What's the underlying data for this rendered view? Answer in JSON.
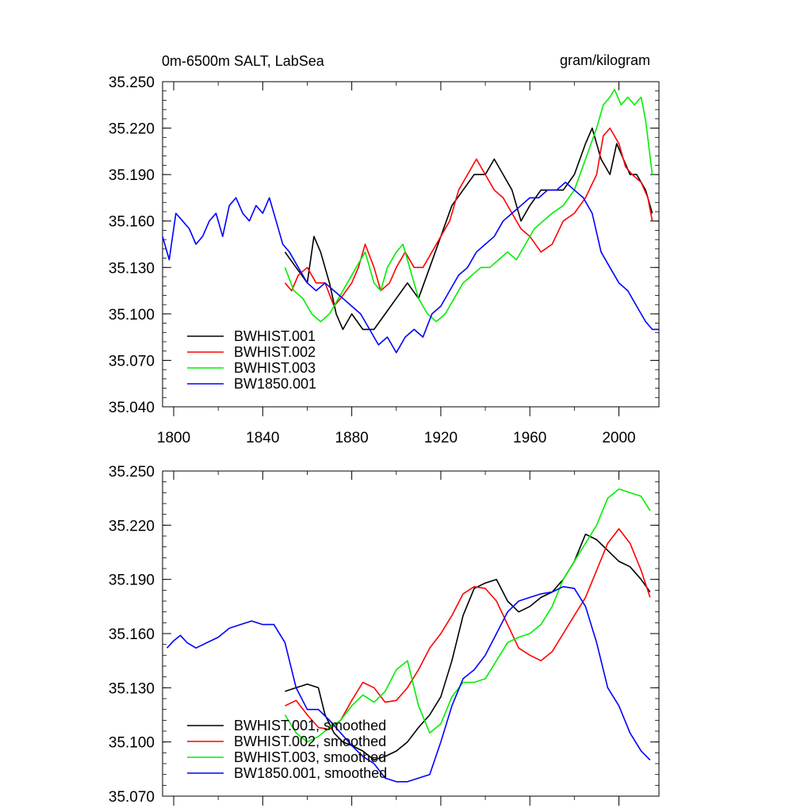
{
  "chart_data": [
    {
      "type": "line",
      "title": "0m-6500m SALT, LabSea",
      "units": "gram/kilogram",
      "xlim": [
        1795,
        2018
      ],
      "ylim": [
        35.04,
        35.25
      ],
      "xticks": [
        1800,
        1840,
        1880,
        1920,
        1960,
        2000
      ],
      "xtick_labels": [
        "1800",
        "1840",
        "1880",
        "1920",
        "1960",
        "2000"
      ],
      "yticks": [
        35.04,
        35.07,
        35.1,
        35.13,
        35.16,
        35.19,
        35.22,
        35.25
      ],
      "ytick_labels": [
        "35.040",
        "35.070",
        "35.100",
        "35.130",
        "35.160",
        "35.190",
        "35.220",
        "35.250"
      ],
      "legend": "bottom-left",
      "series": [
        {
          "name": "BWHIST.001",
          "color": "#000000",
          "x": [
            1850,
            1855,
            1860,
            1863,
            1866,
            1870,
            1873,
            1876,
            1880,
            1885,
            1890,
            1895,
            1900,
            1905,
            1910,
            1915,
            1920,
            1925,
            1930,
            1935,
            1940,
            1944,
            1948,
            1952,
            1956,
            1960,
            1965,
            1970,
            1975,
            1980,
            1985,
            1988,
            1992,
            1996,
            1999,
            2002,
            2005,
            2008,
            2012,
            2015
          ],
          "y": [
            35.14,
            35.13,
            35.12,
            35.15,
            35.14,
            35.12,
            35.1,
            35.09,
            35.1,
            35.09,
            35.09,
            35.1,
            35.11,
            35.12,
            35.11,
            35.13,
            35.15,
            35.17,
            35.18,
            35.19,
            35.19,
            35.2,
            35.19,
            35.18,
            35.16,
            35.17,
            35.18,
            35.18,
            35.18,
            35.19,
            35.21,
            35.22,
            35.2,
            35.19,
            35.21,
            35.2,
            35.19,
            35.19,
            35.18,
            35.165
          ]
        },
        {
          "name": "BWHIST.002",
          "color": "#ff0000",
          "x": [
            1850,
            1853,
            1856,
            1860,
            1864,
            1868,
            1872,
            1875,
            1880,
            1883,
            1886,
            1890,
            1893,
            1897,
            1900,
            1904,
            1908,
            1912,
            1916,
            1920,
            1924,
            1928,
            1932,
            1936,
            1940,
            1944,
            1948,
            1952,
            1956,
            1960,
            1965,
            1970,
            1975,
            1980,
            1985,
            1990,
            1993,
            1996,
            2000,
            2003,
            2006,
            2010,
            2013,
            2015
          ],
          "y": [
            35.12,
            35.115,
            35.125,
            35.13,
            35.12,
            35.12,
            35.105,
            35.11,
            35.12,
            35.13,
            35.145,
            35.13,
            35.115,
            35.12,
            35.13,
            35.14,
            35.13,
            35.13,
            35.14,
            35.15,
            35.16,
            35.18,
            35.19,
            35.2,
            35.19,
            35.18,
            35.175,
            35.165,
            35.155,
            35.15,
            35.14,
            35.145,
            35.16,
            35.165,
            35.175,
            35.19,
            35.215,
            35.22,
            35.21,
            35.195,
            35.19,
            35.185,
            35.175,
            35.16
          ]
        },
        {
          "name": "BWHIST.003",
          "color": "#00ee00",
          "x": [
            1850,
            1854,
            1858,
            1862,
            1866,
            1870,
            1874,
            1878,
            1882,
            1886,
            1890,
            1893,
            1896,
            1900,
            1903,
            1906,
            1910,
            1914,
            1918,
            1922,
            1926,
            1930,
            1934,
            1938,
            1942,
            1946,
            1950,
            1954,
            1958,
            1962,
            1966,
            1970,
            1975,
            1980,
            1985,
            1990,
            1993,
            1996,
            1998,
            2001,
            2004,
            2007,
            2010,
            2012,
            2015
          ],
          "y": [
            35.13,
            35.115,
            35.11,
            35.1,
            35.095,
            35.1,
            35.11,
            35.12,
            35.13,
            35.14,
            35.12,
            35.115,
            35.13,
            35.14,
            35.145,
            35.13,
            35.11,
            35.1,
            35.095,
            35.1,
            35.11,
            35.12,
            35.125,
            35.13,
            35.13,
            35.135,
            35.14,
            35.135,
            35.145,
            35.155,
            35.16,
            35.165,
            35.17,
            35.18,
            35.2,
            35.22,
            35.235,
            35.24,
            35.245,
            35.235,
            35.24,
            35.235,
            35.24,
            35.225,
            35.19
          ]
        },
        {
          "name": "BW1850.001",
          "color": "#0000ff",
          "x": [
            1795,
            1798,
            1801,
            1804,
            1807,
            1810,
            1813,
            1816,
            1819,
            1822,
            1825,
            1828,
            1831,
            1834,
            1837,
            1840,
            1843,
            1846,
            1849,
            1852,
            1856,
            1860,
            1864,
            1868,
            1872,
            1876,
            1880,
            1884,
            1888,
            1892,
            1896,
            1900,
            1904,
            1908,
            1912,
            1916,
            1920,
            1924,
            1928,
            1932,
            1936,
            1940,
            1944,
            1948,
            1952,
            1956,
            1960,
            1964,
            1968,
            1972,
            1976,
            1980,
            1984,
            1988,
            1992,
            1996,
            2000,
            2004,
            2008,
            2012,
            2015,
            2018
          ],
          "y": [
            35.15,
            35.135,
            35.165,
            35.16,
            35.155,
            35.145,
            35.15,
            35.16,
            35.165,
            35.15,
            35.17,
            35.175,
            35.165,
            35.16,
            35.17,
            35.165,
            35.175,
            35.16,
            35.145,
            35.14,
            35.13,
            35.12,
            35.115,
            35.12,
            35.115,
            35.11,
            35.105,
            35.1,
            35.09,
            35.08,
            35.085,
            35.075,
            35.085,
            35.09,
            35.085,
            35.1,
            35.105,
            35.115,
            35.125,
            35.13,
            35.14,
            35.145,
            35.15,
            35.16,
            35.165,
            35.17,
            35.175,
            35.175,
            35.18,
            35.18,
            35.185,
            35.18,
            35.175,
            35.165,
            35.14,
            35.13,
            35.12,
            35.115,
            35.105,
            35.095,
            35.09,
            35.09
          ]
        }
      ]
    },
    {
      "type": "line",
      "xlim": [
        1795,
        2018
      ],
      "ylim": [
        35.07,
        35.25
      ],
      "xticks": [
        1800,
        1840,
        1880,
        1920,
        1960,
        2000
      ],
      "yticks": [
        35.07,
        35.1,
        35.13,
        35.16,
        35.19,
        35.22,
        35.25
      ],
      "ytick_labels": [
        "35.070",
        "35.100",
        "35.130",
        "35.160",
        "35.190",
        "35.220",
        "35.250"
      ],
      "legend": "bottom-left",
      "series": [
        {
          "name": "BWHIST.001, smoothed",
          "color": "#000000",
          "x": [
            1850,
            1855,
            1860,
            1865,
            1868,
            1872,
            1876,
            1880,
            1885,
            1890,
            1895,
            1900,
            1905,
            1910,
            1915,
            1920,
            1925,
            1930,
            1935,
            1940,
            1945,
            1950,
            1955,
            1960,
            1965,
            1970,
            1975,
            1980,
            1985,
            1990,
            1995,
            2000,
            2005,
            2010,
            2014
          ],
          "y": [
            35.128,
            35.13,
            35.132,
            35.13,
            35.115,
            35.105,
            35.1,
            35.098,
            35.095,
            35.09,
            35.092,
            35.095,
            35.1,
            35.108,
            35.115,
            35.125,
            35.145,
            35.17,
            35.185,
            35.188,
            35.19,
            35.178,
            35.172,
            35.175,
            35.18,
            35.183,
            35.19,
            35.2,
            35.215,
            35.212,
            35.206,
            35.2,
            35.197,
            35.19,
            35.183
          ]
        },
        {
          "name": "BWHIST.002, smoothed",
          "color": "#ff0000",
          "x": [
            1850,
            1855,
            1860,
            1865,
            1870,
            1875,
            1880,
            1885,
            1890,
            1895,
            1900,
            1905,
            1910,
            1915,
            1920,
            1925,
            1930,
            1935,
            1940,
            1945,
            1950,
            1955,
            1960,
            1965,
            1970,
            1975,
            1980,
            1985,
            1990,
            1995,
            2000,
            2005,
            2010,
            2014
          ],
          "y": [
            35.12,
            35.123,
            35.115,
            35.108,
            35.107,
            35.112,
            35.123,
            35.133,
            35.13,
            35.122,
            35.123,
            35.13,
            35.14,
            35.152,
            35.16,
            35.17,
            35.182,
            35.186,
            35.185,
            35.178,
            35.165,
            35.152,
            35.148,
            35.145,
            35.15,
            35.16,
            35.17,
            35.18,
            35.195,
            35.21,
            35.218,
            35.21,
            35.195,
            35.18
          ]
        },
        {
          "name": "BWHIST.003, smoothed",
          "color": "#00ee00",
          "x": [
            1850,
            1855,
            1860,
            1865,
            1870,
            1875,
            1880,
            1885,
            1890,
            1895,
            1900,
            1905,
            1910,
            1915,
            1920,
            1925,
            1930,
            1935,
            1940,
            1945,
            1950,
            1955,
            1960,
            1965,
            1970,
            1975,
            1980,
            1985,
            1990,
            1995,
            2000,
            2005,
            2010,
            2014
          ],
          "y": [
            35.115,
            35.105,
            35.1,
            35.103,
            35.108,
            35.112,
            35.12,
            35.126,
            35.122,
            35.128,
            35.14,
            35.145,
            35.12,
            35.105,
            35.11,
            35.125,
            35.133,
            35.133,
            35.135,
            35.145,
            35.155,
            35.158,
            35.16,
            35.165,
            35.175,
            35.19,
            35.2,
            35.21,
            35.22,
            35.235,
            35.24,
            35.238,
            35.236,
            35.228
          ]
        },
        {
          "name": "BW1850.001, smoothed",
          "color": "#0000ff",
          "x": [
            1797,
            1800,
            1803,
            1806,
            1810,
            1815,
            1820,
            1825,
            1830,
            1835,
            1840,
            1845,
            1850,
            1855,
            1860,
            1865,
            1870,
            1875,
            1880,
            1885,
            1890,
            1895,
            1900,
            1905,
            1910,
            1915,
            1920,
            1925,
            1930,
            1935,
            1940,
            1945,
            1950,
            1955,
            1960,
            1965,
            1970,
            1975,
            1980,
            1985,
            1990,
            1995,
            2000,
            2005,
            2010,
            2014
          ],
          "y": [
            35.152,
            35.156,
            35.159,
            35.155,
            35.152,
            35.155,
            35.158,
            35.163,
            35.165,
            35.167,
            35.165,
            35.165,
            35.155,
            35.13,
            35.118,
            35.118,
            35.112,
            35.105,
            35.098,
            35.092,
            35.088,
            35.08,
            35.078,
            35.078,
            35.08,
            35.082,
            35.1,
            35.12,
            35.135,
            35.14,
            35.148,
            35.16,
            35.172,
            35.178,
            35.18,
            35.182,
            35.183,
            35.186,
            35.185,
            35.175,
            35.155,
            35.13,
            35.12,
            35.105,
            35.095,
            35.09
          ]
        }
      ]
    }
  ]
}
